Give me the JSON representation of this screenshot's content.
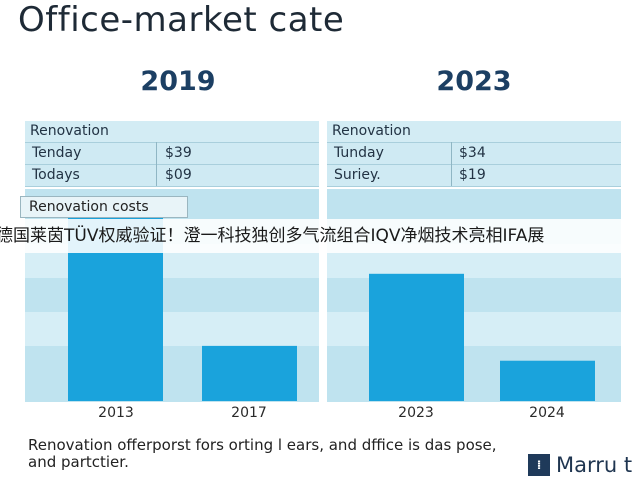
{
  "title": "Office-market cate",
  "panels": [
    {
      "year": "2019",
      "table_header": "Renovation",
      "rows": [
        {
          "label": "Tenday",
          "value": "$39"
        },
        {
          "label": "Todays",
          "value": "$09"
        }
      ],
      "costs_label": "Renovation costs"
    },
    {
      "year": "2023",
      "table_header": "Renovation",
      "rows": [
        {
          "label": "Tunday",
          "value": "$34"
        },
        {
          "label": "Suriey.",
          "value": "$19"
        }
      ]
    }
  ],
  "banner_text": "德国莱茵TÜV权威验证！澄一科技独创多气流组合IQV净烟技术亮相IFA展",
  "footnote": "Renovation offerporst fors orting l ears, and dffice is das pose, and partctier.",
  "logo_text": "Marru t",
  "colors": {
    "bar": "#1aa3dc",
    "plot_bg": "#bfe3ef",
    "band": "#d6eef6"
  },
  "chart_data": [
    {
      "type": "bar",
      "title": "2019",
      "categories": [
        "2013",
        "2017"
      ],
      "values": [
        88,
        26
      ],
      "ylim": [
        0,
        100
      ],
      "grid": true
    },
    {
      "type": "bar",
      "title": "2023",
      "categories": [
        "2023",
        "2024"
      ],
      "values": [
        60,
        19
      ],
      "ylim": [
        0,
        100
      ],
      "grid": true
    }
  ]
}
